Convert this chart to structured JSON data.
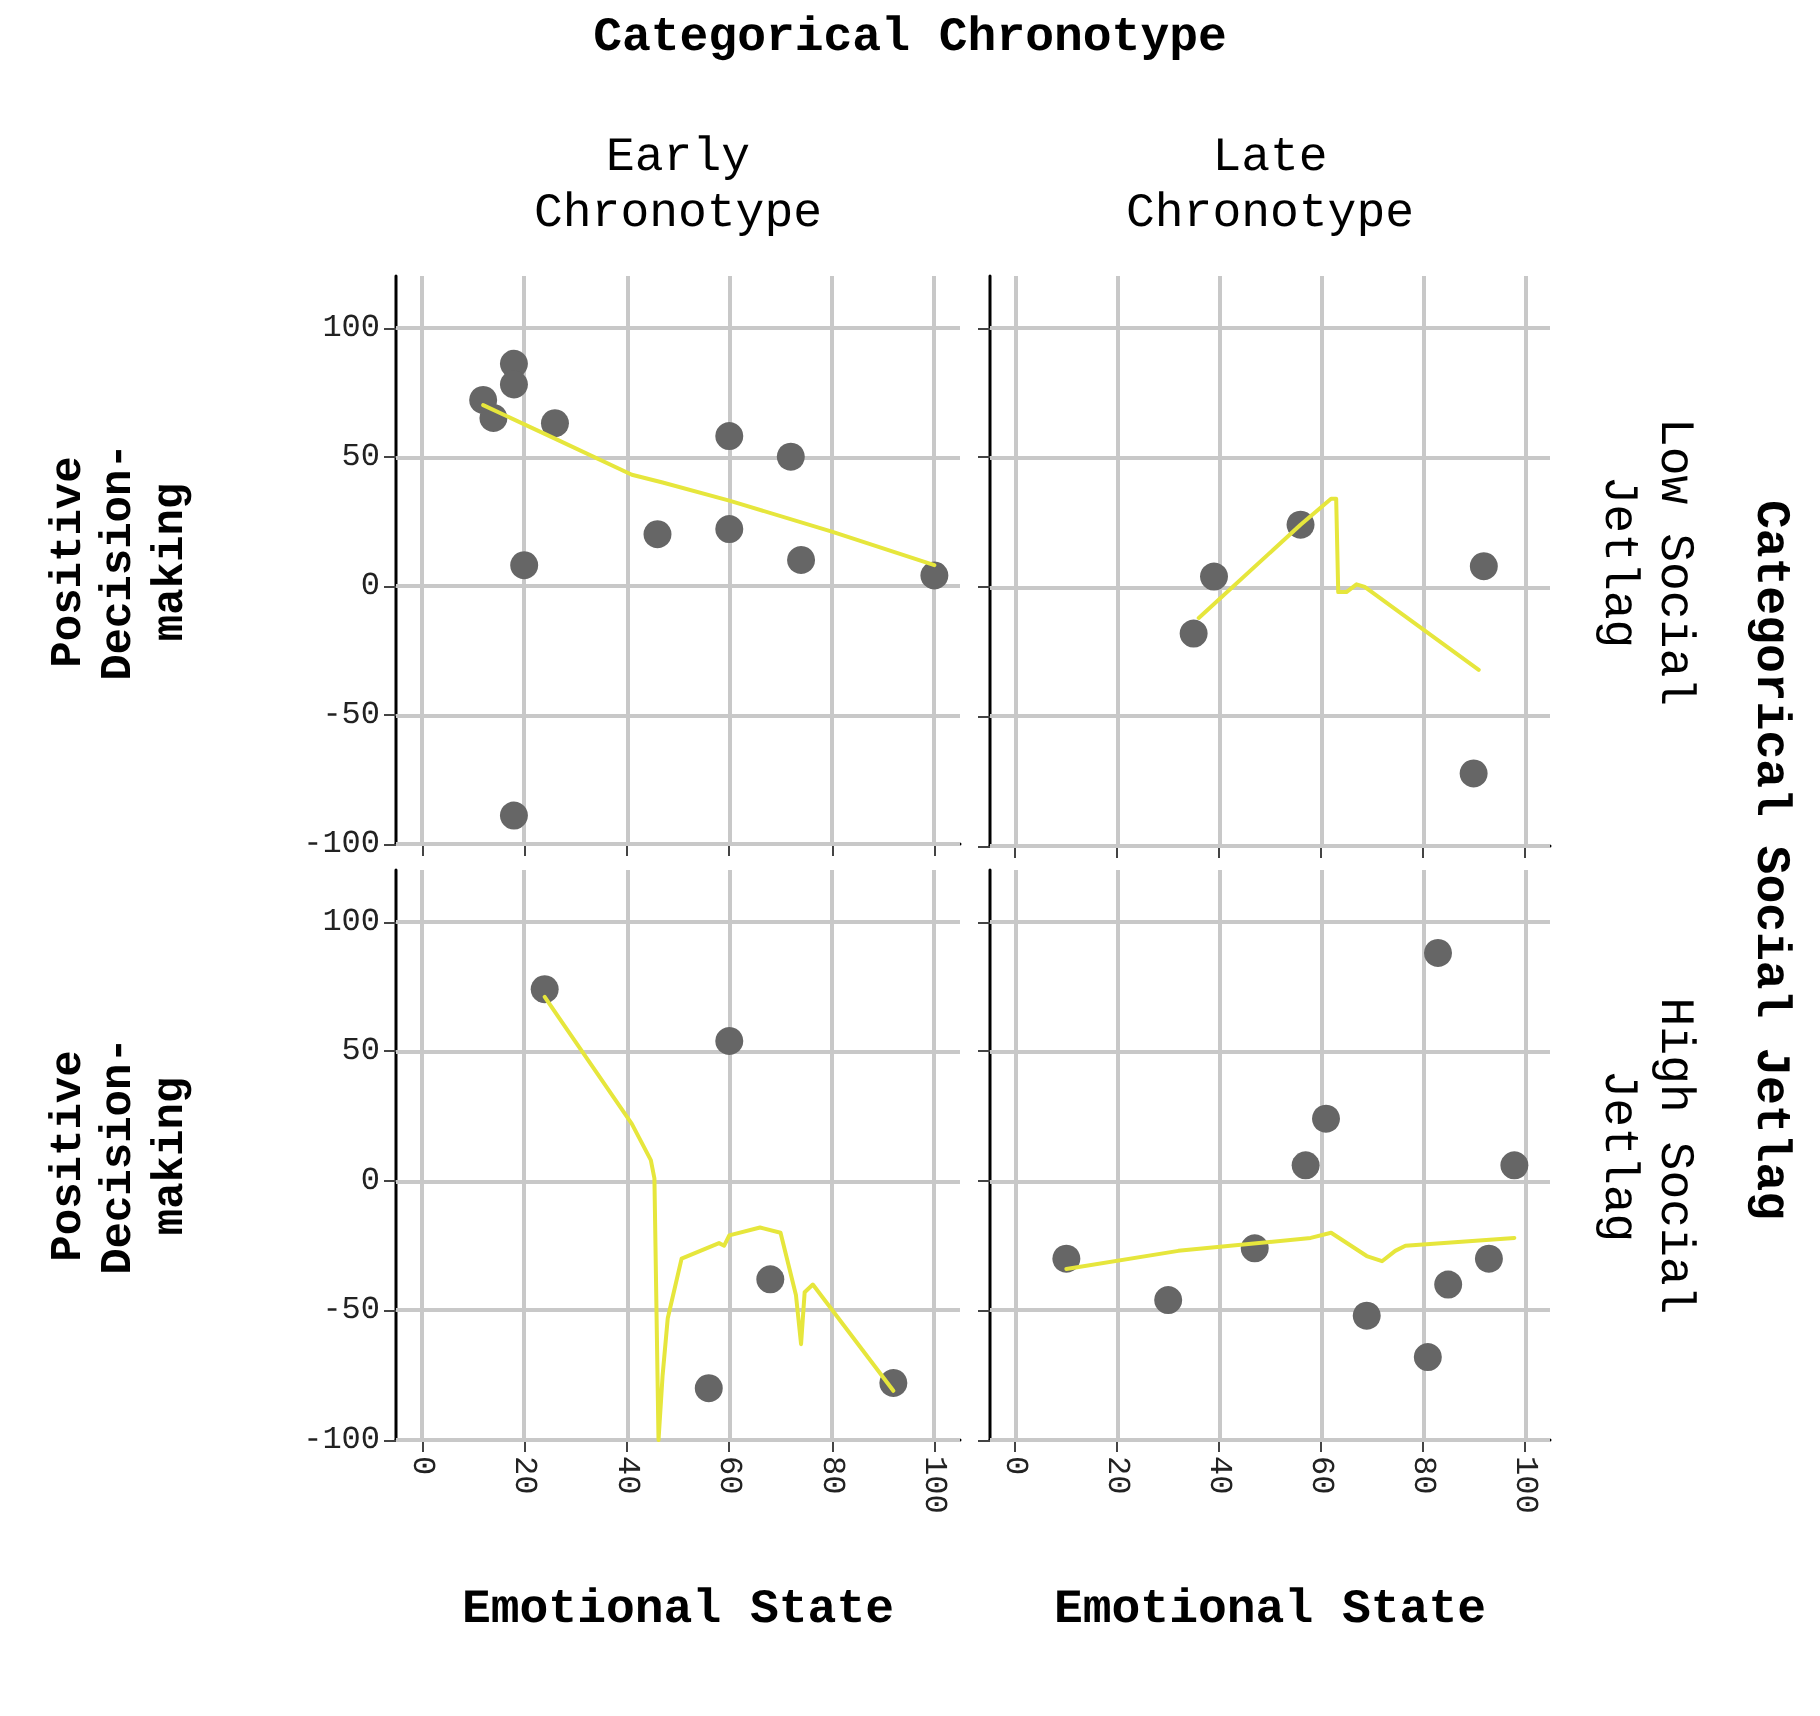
{
  "chart_data": [
    {
      "type": "scatter",
      "title": "Early Chronotype",
      "ylabel": "Positive Decision-making",
      "annotations": [
        "Categorical Chronotype"
      ],
      "xlim": [
        -5,
        105
      ],
      "xticks": [
        0,
        20,
        40,
        60,
        80,
        100
      ],
      "ylim": [
        -100,
        120
      ],
      "yticks": [
        -100,
        -50,
        0,
        50,
        100
      ],
      "grid": true,
      "tick_labels": "y",
      "marker": "circle",
      "series": [
        {
          "type": "scatter",
          "color": "#666666",
          "x": [
            12,
            14,
            18,
            18,
            26,
            20,
            18,
            46,
            60,
            60,
            72,
            74,
            100
          ],
          "values": [
            72,
            65,
            86,
            78,
            63,
            8,
            -89,
            20,
            58,
            22,
            50,
            10,
            4
          ]
        },
        {
          "type": "line",
          "marker": "none",
          "line_style": "solid",
          "color": "#e6e63c",
          "x": [
            12,
            26,
            41,
            47,
            60,
            80,
            100
          ],
          "values": [
            70,
            57,
            43,
            40,
            33,
            21,
            8
          ]
        }
      ]
    },
    {
      "type": "scatter",
      "title": "Late Chronotype",
      "annotations": [
        "Low Social Jetlag",
        "Categorical Social Jetlag"
      ],
      "xlim": [
        -5,
        105
      ],
      "xticks": [
        0,
        20,
        40,
        60,
        80,
        100
      ],
      "ylim": [
        -100,
        120
      ],
      "yticks": [
        -100,
        -50,
        0,
        50,
        100
      ],
      "grid": true,
      "tick_labels": false,
      "marker": "circle",
      "series": [
        {
          "type": "scatter",
          "color": "#666666",
          "x": [
            35,
            39,
            56,
            92,
            90
          ],
          "values": [
            -18,
            4,
            24,
            8,
            -72
          ]
        },
        {
          "type": "line",
          "marker": "none",
          "line_style": "solid",
          "color": "#e6e63c",
          "x": [
            36,
            56,
            62,
            63,
            63.4,
            65,
            67,
            68.6,
            91
          ],
          "values": [
            -12,
            24,
            34,
            34,
            -2,
            -2,
            1,
            0,
            -32
          ]
        }
      ]
    },
    {
      "type": "scatter",
      "ylabel": "Positive Decision-making",
      "xlabel": "Emotional State",
      "xlim": [
        -5,
        105
      ],
      "xticks": [
        0,
        20,
        40,
        60,
        80,
        100
      ],
      "ylim": [
        -100,
        120
      ],
      "yticks": [
        -100,
        -50,
        0,
        50,
        100
      ],
      "grid": true,
      "marker": "circle",
      "series": [
        {
          "type": "scatter",
          "color": "#666666",
          "x": [
            24,
            60,
            68,
            56,
            92
          ],
          "values": [
            74,
            54,
            -38,
            -80,
            -78
          ]
        },
        {
          "type": "line",
          "marker": "none",
          "line_style": "solid",
          "color": "#e6e63c",
          "x": [
            24,
            41,
            44.7,
            45.4,
            46.2,
            47,
            48,
            50.7,
            58,
            59,
            60,
            66,
            70,
            73,
            74,
            74.7,
            76.3,
            92
          ],
          "values": [
            71,
            22,
            8,
            1,
            -100,
            -75,
            -53,
            -30,
            -24,
            -25,
            -21,
            -18,
            -20,
            -44,
            -63,
            -43,
            -40,
            -81
          ]
        }
      ]
    },
    {
      "type": "scatter",
      "xlabel": "Emotional State",
      "annotations": [
        "High Social Jetlag"
      ],
      "xlim": [
        -5,
        105
      ],
      "xticks": [
        0,
        20,
        40,
        60,
        80,
        100
      ],
      "ylim": [
        -100,
        120
      ],
      "yticks": [
        -100,
        -50,
        0,
        50,
        100
      ],
      "grid": true,
      "tick_labels": "x",
      "marker": "circle",
      "series": [
        {
          "type": "scatter",
          "color": "#666666",
          "x": [
            10,
            30,
            47,
            57,
            61,
            69,
            81,
            83,
            85,
            93,
            98
          ],
          "values": [
            -30,
            -46,
            -26,
            6,
            24,
            -52,
            -68,
            88,
            -40,
            -30,
            6
          ]
        },
        {
          "type": "line",
          "marker": "none",
          "line_style": "solid",
          "color": "#e6e63c",
          "x": [
            10,
            32,
            58,
            62,
            69,
            72,
            74.6,
            76.6,
            98
          ],
          "values": [
            -34,
            -27,
            -22,
            -20,
            -29,
            -31,
            -27,
            -25,
            -22
          ]
        }
      ]
    }
  ]
}
